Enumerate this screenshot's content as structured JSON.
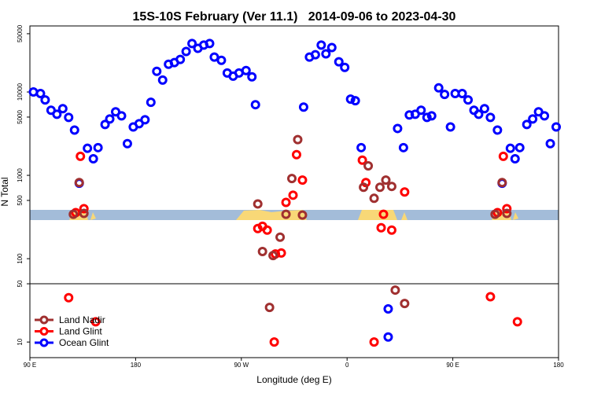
{
  "chart_data": {
    "type": "scatter",
    "title": "15S-10S February (Ver 11.1)   2014-09-06 to 2023-04-30",
    "x_label": "Longitude (deg E)",
    "y_label": "N Total",
    "xlim": [
      90,
      540
    ],
    "xticks": [
      {
        "value": 90,
        "label": "90 E"
      },
      180,
      {
        "value": 270,
        "label": "90 W"
      },
      {
        "value": 360,
        "label": "0"
      },
      {
        "value": 450,
        "label": "90 E"
      },
      {
        "value": 540,
        "label": "180"
      }
    ],
    "ylim": [
      6.5,
      62000
    ],
    "log_y": true,
    "yticks": [
      10,
      50,
      100,
      500,
      1000,
      5000,
      10000,
      50000
    ],
    "split_line": 50,
    "legend": "bottom-left",
    "series": [
      {
        "name": "Land Nadir",
        "color": "#a03030",
        "x": [
          127,
          132,
          136,
          284,
          288,
          297,
          303,
          308,
          313,
          318,
          322,
          294,
          374,
          378,
          383,
          388,
          393,
          398,
          401,
          409,
          486,
          492,
          496
        ],
        "values": [
          341,
          820,
          349,
          454,
          122,
          109,
          181,
          341,
          916,
          2680,
          334,
          26,
          720,
          1300,
          530,
          720,
          877,
          736,
          42,
          29,
          341,
          820,
          349
        ]
      },
      {
        "name": "Land Glint",
        "color": "#ff0000",
        "x": [
          133,
          129,
          136,
          123,
          146,
          284,
          288,
          292,
          299,
          304,
          308,
          314,
          317,
          322,
          298,
          373,
          376,
          383,
          389,
          391,
          398,
          409,
          482,
          488,
          493,
          496,
          505
        ],
        "values": [
          1690,
          357,
          398,
          34,
          17.5,
          230,
          245,
          220,
          114,
          117,
          474,
          578,
          1770,
          877,
          10,
          1520,
          820,
          10,
          235,
          341,
          220,
          631,
          35,
          357,
          1690,
          398,
          17.5
        ]
      },
      {
        "name": "Ocean Glint",
        "color": "#0000ff",
        "x": [
          93,
          99,
          103,
          108,
          113,
          118,
          123,
          128,
          132,
          139,
          144,
          148,
          154,
          158,
          163,
          168,
          173,
          178,
          183,
          188,
          193,
          198,
          203,
          208,
          213,
          218,
          223,
          228,
          233,
          238,
          243,
          247,
          253,
          258,
          263,
          268,
          274,
          279,
          282,
          323,
          328,
          333,
          338,
          342,
          347,
          353,
          358,
          363,
          367,
          372,
          395,
          395,
          403,
          408,
          413,
          418,
          423,
          428,
          432,
          438,
          443,
          448,
          452,
          458,
          463,
          468,
          472,
          477,
          482,
          488,
          492,
          499,
          503,
          507,
          513,
          518,
          523,
          528,
          533,
          538
        ],
        "values": [
          10000,
          9570,
          8030,
          6040,
          5410,
          6310,
          4960,
          3490,
          803,
          2110,
          1580,
          2150,
          4070,
          4740,
          5780,
          5180,
          2400,
          3810,
          4160,
          4640,
          7520,
          17700,
          13900,
          21500,
          22500,
          24600,
          30600,
          38100,
          33400,
          36500,
          38100,
          26200,
          24000,
          16900,
          15500,
          16900,
          18100,
          15200,
          7040,
          6590,
          26200,
          28000,
          36500,
          28700,
          34100,
          23000,
          19700,
          8200,
          7860,
          2150,
          25,
          11.5,
          3650,
          2150,
          5300,
          5410,
          6040,
          4960,
          5180,
          11200,
          9360,
          3810,
          9570,
          9570,
          8030,
          6040,
          5410,
          6310,
          4960,
          3490,
          803,
          2110,
          1580,
          2150,
          4070,
          4740,
          5780,
          5180,
          2400,
          3810
        ]
      }
    ]
  }
}
